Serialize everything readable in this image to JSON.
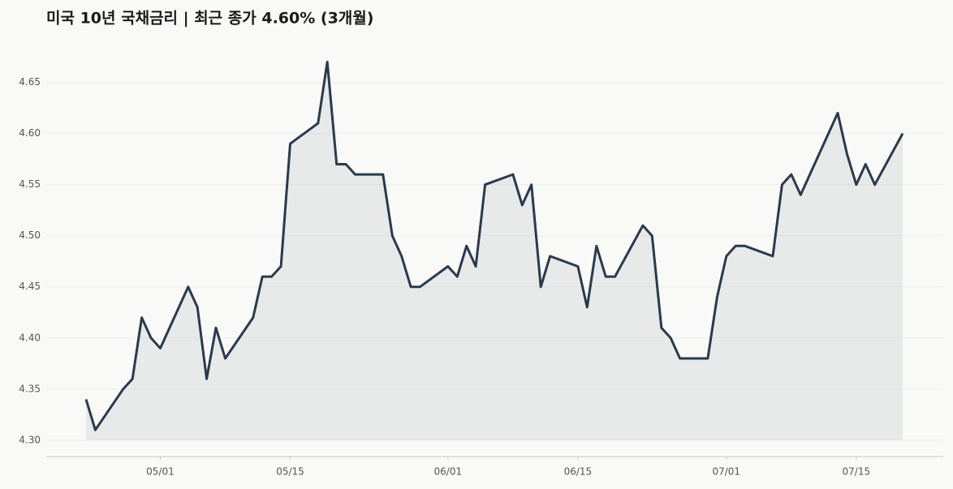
{
  "chart_data": {
    "type": "line",
    "title": "미국 10년 국채금리 | 최근 종가 4.60% (3개월)",
    "x": [
      "04/23",
      "04/24",
      "04/27",
      "04/28",
      "04/29",
      "04/30",
      "05/01",
      "05/04",
      "05/05",
      "05/06",
      "05/07",
      "05/08",
      "05/11",
      "05/12",
      "05/13",
      "05/14",
      "05/15",
      "05/18",
      "05/19",
      "05/20",
      "05/21",
      "05/22",
      "05/25",
      "05/26",
      "05/27",
      "05/28",
      "05/29",
      "06/01",
      "06/02",
      "06/03",
      "06/04",
      "06/05",
      "06/08",
      "06/09",
      "06/10",
      "06/11",
      "06/12",
      "06/15",
      "06/16",
      "06/17",
      "06/18",
      "06/19",
      "06/22",
      "06/23",
      "06/24",
      "06/25",
      "06/26",
      "06/29",
      "06/30",
      "07/01",
      "07/02",
      "07/03",
      "07/06",
      "07/07",
      "07/08",
      "07/09",
      "07/13",
      "07/14",
      "07/15",
      "07/16",
      "07/17",
      "07/20"
    ],
    "series": [
      {
        "name": "미국 10년 국채금리",
        "color": "#2b3a4c",
        "values": [
          4.34,
          4.31,
          4.35,
          4.36,
          4.42,
          4.4,
          4.39,
          4.45,
          4.43,
          4.36,
          4.41,
          4.38,
          4.42,
          4.46,
          4.46,
          4.47,
          4.59,
          4.61,
          4.67,
          4.57,
          4.57,
          4.56,
          4.56,
          4.5,
          4.48,
          4.45,
          4.45,
          4.47,
          4.46,
          4.49,
          4.47,
          4.55,
          4.56,
          4.53,
          4.55,
          4.45,
          4.48,
          4.47,
          4.43,
          4.49,
          4.46,
          4.46,
          4.51,
          4.5,
          4.41,
          4.4,
          4.38,
          4.38,
          4.44,
          4.48,
          4.49,
          4.49,
          4.48,
          4.55,
          4.56,
          4.54,
          4.62,
          4.58,
          4.55,
          4.57,
          4.55,
          4.6
        ]
      }
    ],
    "xticks": [
      "05/01",
      "05/15",
      "06/01",
      "06/15",
      "07/01",
      "07/15"
    ],
    "ylim": [
      4.284,
      4.683
    ],
    "yticks": [
      {
        "value": 4.3,
        "label": "4.30"
      },
      {
        "value": 4.35,
        "label": "4.35"
      },
      {
        "value": 4.4,
        "label": "4.40"
      },
      {
        "value": 4.45,
        "label": "4.45"
      },
      {
        "value": 4.5,
        "label": "4.50"
      },
      {
        "value": 4.55,
        "label": "4.55"
      },
      {
        "value": 4.6,
        "label": "4.60"
      },
      {
        "value": 4.65,
        "label": "4.65"
      }
    ],
    "grid": true,
    "area": true
  }
}
